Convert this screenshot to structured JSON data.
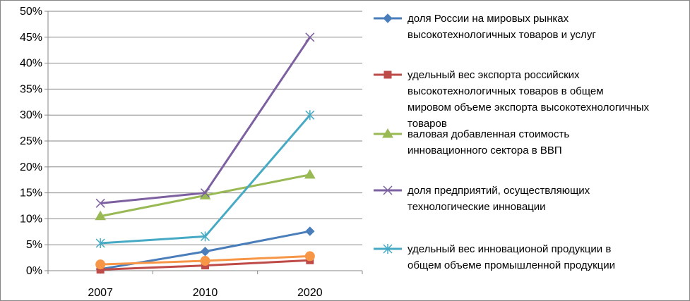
{
  "chart_data": {
    "type": "line",
    "x": [
      "2007",
      "2010",
      "2020"
    ],
    "ylim": [
      0,
      50
    ],
    "y_ticks": [
      "0%",
      "5%",
      "10%",
      "15%",
      "20%",
      "25%",
      "30%",
      "35%",
      "40%",
      "45%",
      "50%"
    ],
    "y_unit": "%",
    "grid": true,
    "legend_position": "right",
    "series": [
      {
        "name": "доля России на мировых рынках высокотехнологичных товаров и услуг",
        "legend_lines": [
          "доля России на мировых рынках",
          "высокотехнологичных товаров и услуг"
        ],
        "color": "#4A7EBB",
        "marker": "diamond",
        "values": [
          0.3,
          3.7,
          7.6
        ]
      },
      {
        "name": "удельный вес экспорта российских высокотехнологичных товаров в общем мировом объеме экспорта высокотехнологичных товаров",
        "legend_lines": [
          "удельный вес экспорта российских",
          "высокотехнологичных товаров в общем",
          "мировом объеме экспорта высокотехнологичных",
          "товаров"
        ],
        "color": "#BE4B48",
        "marker": "square",
        "values": [
          0.2,
          1.0,
          2.0
        ]
      },
      {
        "name": "валовая добавленная стоимость инновационного сектора в ВВП",
        "legend_lines": [
          "валовая добавленная стоимость",
          "инновационного сектора в ВВП"
        ],
        "color": "#98B954",
        "marker": "triangle",
        "values": [
          10.5,
          14.5,
          18.5
        ]
      },
      {
        "name": "доля предприятий, осуществляющих технологические инновации",
        "legend_lines": [
          "доля предприятий, осуществляющих",
          "технологические инновации"
        ],
        "color": "#7D60A0",
        "marker": "x",
        "values": [
          13.0,
          15.0,
          45.0
        ]
      },
      {
        "name": "удельный вес инновационой продукции в общем объеме промышленной продукции",
        "legend_lines": [
          "удельный вес инновационой продукции в",
          "общем объеме промышленной продукции"
        ],
        "color": "#46AAC5",
        "marker": "star",
        "values": [
          5.3,
          6.6,
          30.0
        ]
      },
      {
        "color": "#F79646",
        "marker": "circle",
        "values": [
          1.2,
          1.9,
          2.8
        ]
      }
    ]
  }
}
